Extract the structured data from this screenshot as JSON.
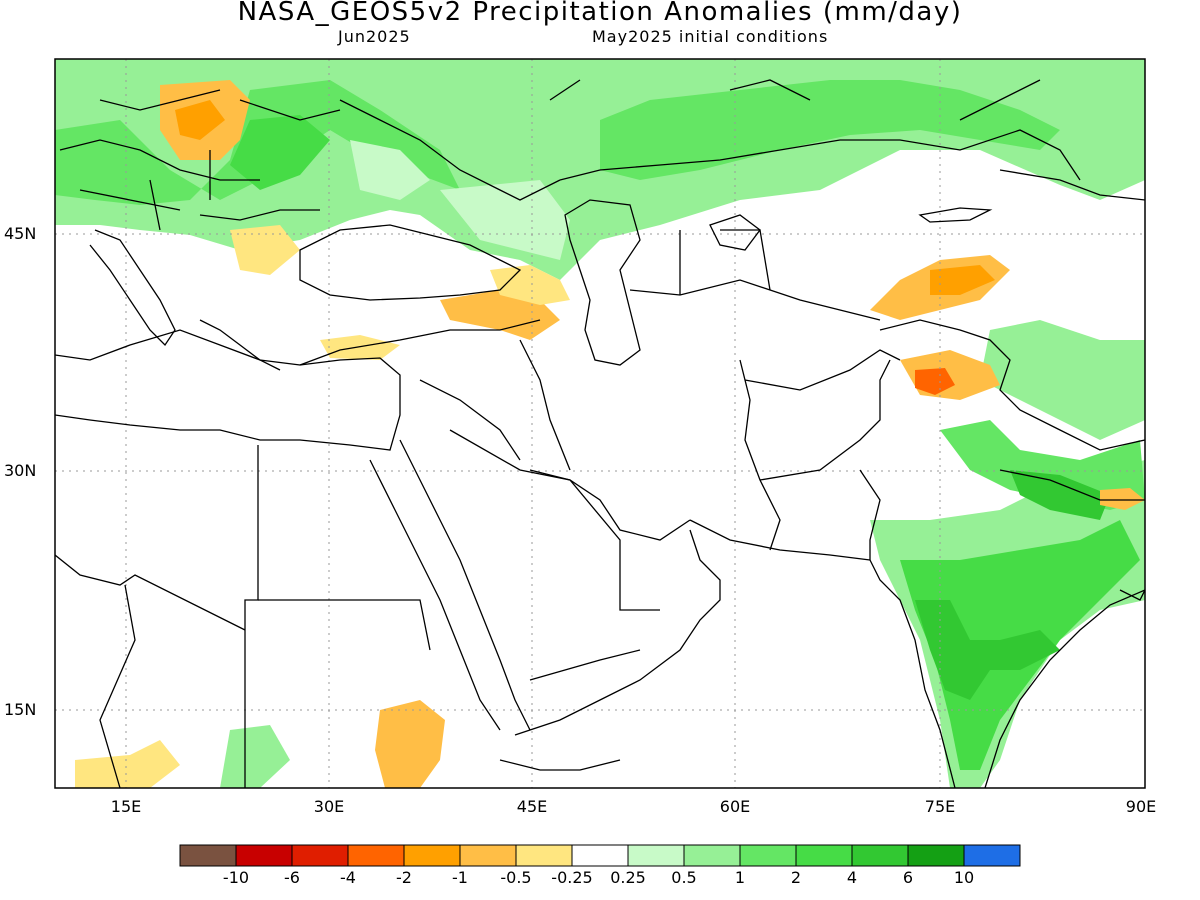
{
  "title": "NASA_GEOS5v2 Precipitation Anomalies (mm/day)",
  "subtitle_left": "Jun2025",
  "subtitle_right": "May2025 initial conditions",
  "lat_labels": [
    "45N",
    "30N",
    "15N"
  ],
  "lon_labels": [
    "15E",
    "30E",
    "45E",
    "60E",
    "75E",
    "90E"
  ],
  "colorbar": {
    "colors": [
      "#7a5240",
      "#c80000",
      "#e01e00",
      "#ff6400",
      "#ffa000",
      "#ffbe46",
      "#ffe680",
      "#ffffff",
      "#c8fac8",
      "#96f096",
      "#64e664",
      "#46dc46",
      "#32c832",
      "#14a014",
      "#1e6ee6"
    ],
    "labels": [
      "-10",
      "-6",
      "-4",
      "-2",
      "-1",
      "-0.5",
      "-0.25",
      "0.25",
      "0.5",
      "1",
      "2",
      "4",
      "6",
      "10"
    ]
  },
  "palette": {
    "wet_light": "#c8fac8",
    "wet_1": "#96f096",
    "wet_2": "#64e664",
    "wet_4": "#46dc46",
    "wet_6": "#32c832",
    "wet_10": "#14a014",
    "dry_025": "#ffe680",
    "dry_05": "#ffbe46",
    "dry_1": "#ffa000",
    "dry_2": "#ff6400"
  }
}
